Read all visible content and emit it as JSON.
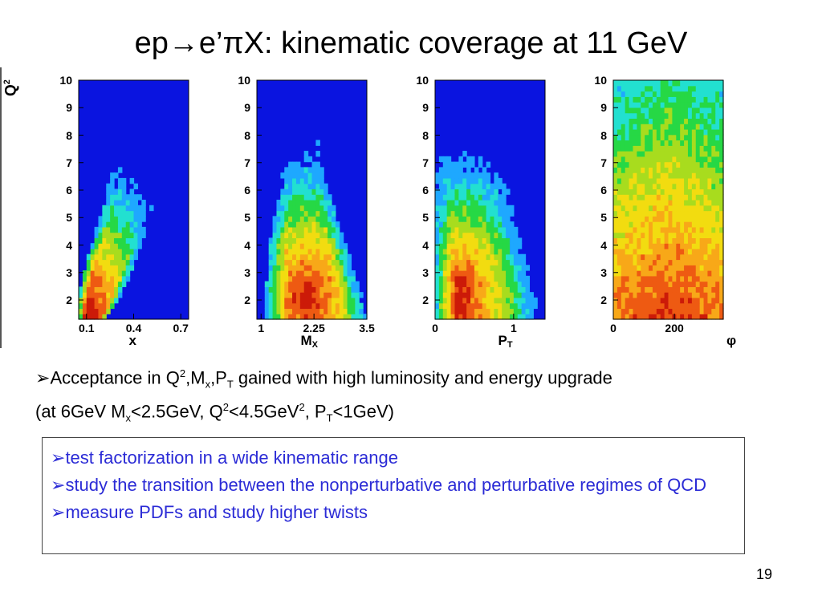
{
  "slide": {
    "title": "ep→e’πX:  kinematic coverage at 11 GeV",
    "page_number": "19"
  },
  "colors": {
    "background_zero": "#0a14e0",
    "scale": [
      "#0a14e0",
      "#1ea8ff",
      "#22e0d0",
      "#26d845",
      "#a8dc1e",
      "#f2dc10",
      "#f8a818",
      "#ee5a12",
      "#cc1a08"
    ]
  },
  "chart_data": [
    {
      "type": "heatmap",
      "xlabel": "x",
      "xlabel_sub": "",
      "ylabel": "Q",
      "ylabel_sup": "2",
      "xlim": [
        0.05,
        0.75
      ],
      "ylim": [
        1.3,
        10
      ],
      "xticks": [
        "0.1",
        "0.4",
        "0.7"
      ],
      "xtick_values": [
        0.1,
        0.4,
        0.7
      ],
      "yticks": [
        "2",
        "3",
        "4",
        "5",
        "6",
        "7",
        "8",
        "9",
        "10"
      ],
      "band": [
        [
          1.3,
          0.05,
          0.22
        ],
        [
          2,
          0.05,
          0.3
        ],
        [
          3,
          0.08,
          0.38
        ],
        [
          4,
          0.13,
          0.45
        ],
        [
          5,
          0.18,
          0.51
        ],
        [
          6,
          0.23,
          0.57
        ],
        [
          7,
          0.28,
          0.62
        ],
        [
          8,
          0.33,
          0.67
        ],
        [
          9,
          0.38,
          0.71
        ],
        [
          10,
          0.42,
          0.75
        ]
      ],
      "peak": [
        0.09,
        1.8
      ]
    },
    {
      "type": "heatmap",
      "xlabel": "M",
      "xlabel_sub": "X",
      "xlim": [
        0.9,
        3.5
      ],
      "ylim": [
        1.3,
        10
      ],
      "xticks": [
        "1",
        "2.25",
        "3.5"
      ],
      "xtick_values": [
        1,
        2.25,
        3.5
      ],
      "yticks": [
        "2",
        "3",
        "4",
        "5",
        "6",
        "7",
        "8",
        "9",
        "10"
      ],
      "band": [
        [
          1.3,
          1.1,
          3.5
        ],
        [
          2,
          1.1,
          3.4
        ],
        [
          3,
          1.15,
          3.2
        ],
        [
          4,
          1.2,
          3.0
        ],
        [
          5,
          1.3,
          2.8
        ],
        [
          6,
          1.4,
          2.6
        ],
        [
          7,
          1.5,
          2.45
        ],
        [
          8,
          1.55,
          2.3
        ],
        [
          9,
          1.6,
          2.2
        ],
        [
          10,
          1.65,
          2.1
        ]
      ],
      "peak": [
        2.1,
        2.0
      ]
    },
    {
      "type": "heatmap",
      "xlabel": "P",
      "xlabel_sub": "T",
      "xlim": [
        0,
        1.4
      ],
      "ylim": [
        1.3,
        10
      ],
      "xticks": [
        "0",
        "1"
      ],
      "xtick_values": [
        0,
        1
      ],
      "yticks": [
        "2",
        "3",
        "4",
        "5",
        "6",
        "7",
        "8",
        "9",
        "10"
      ],
      "band": [
        [
          1.3,
          0.0,
          1.35
        ],
        [
          2,
          0.0,
          1.3
        ],
        [
          3,
          0.0,
          1.2
        ],
        [
          4,
          0.0,
          1.1
        ],
        [
          5,
          0.0,
          1.0
        ],
        [
          6,
          0.0,
          0.95
        ],
        [
          7,
          0.0,
          0.85
        ],
        [
          8,
          0.0,
          0.8
        ],
        [
          9,
          0.0,
          0.72
        ],
        [
          10,
          0.0,
          0.65
        ]
      ],
      "peak": [
        0.3,
        2.0
      ]
    },
    {
      "type": "heatmap",
      "xlabel": "φ",
      "xlabel_sub": "",
      "xlim": [
        0,
        360
      ],
      "ylim": [
        1.3,
        10
      ],
      "xticks": [
        "0",
        "200"
      ],
      "xtick_values": [
        0,
        200
      ],
      "yticks": [
        "2",
        "3",
        "4",
        "5",
        "6",
        "7",
        "8",
        "9",
        "10"
      ],
      "band": [
        [
          1.3,
          0,
          360
        ],
        [
          2,
          0,
          360
        ],
        [
          3,
          0,
          360
        ],
        [
          4,
          0,
          360
        ],
        [
          5,
          0,
          360
        ],
        [
          6,
          0,
          360
        ],
        [
          7,
          0,
          360
        ],
        [
          8,
          0,
          360
        ],
        [
          9,
          0,
          360
        ],
        [
          10,
          0,
          360
        ]
      ],
      "peak": [
        180,
        2.0
      ]
    }
  ],
  "acceptance": {
    "bullet": "➢",
    "p1": "Acceptance in Q",
    "sup1": "2",
    "p2": ",M",
    "sub1": "x",
    "p3": ",P",
    "sub2": "T",
    "p4": " gained with high luminosity and energy upgrade",
    "p5": "(at 6GeV M",
    "sub3": "x",
    "p6": "<2.5GeV, Q",
    "sup2": "2",
    "p7": "<4.5GeV",
    "sup3": "2",
    "p8": ", P",
    "sub4": "T",
    "p9": "<1GeV)"
  },
  "goals": {
    "bullet": "➢",
    "items": [
      "test factorization in a wide kinematic range",
      "study the transition between the  nonperturbative and perturbative regimes of QCD",
      "measure PDFs and study higher twists"
    ]
  }
}
